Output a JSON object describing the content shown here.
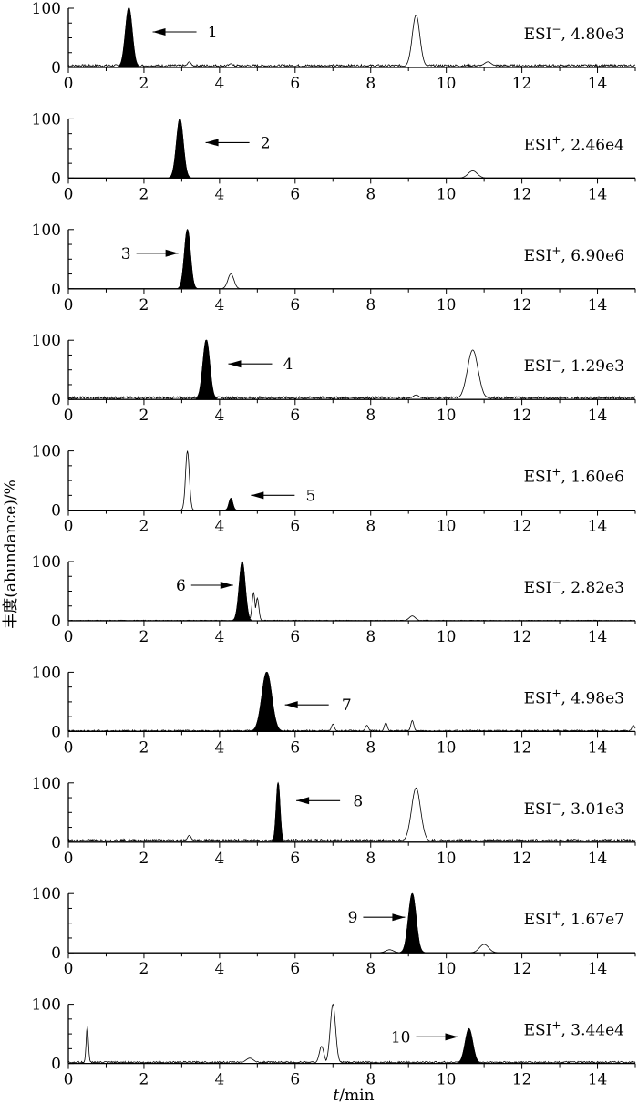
{
  "chart_data": {
    "type": "line",
    "description_free": true,
    "x_axis": {
      "label_italic": "t",
      "label_rest": "/min",
      "range": [
        0,
        15
      ],
      "ticks": [
        "0",
        "2",
        "4",
        "6",
        "8",
        "10",
        "12",
        "14"
      ]
    },
    "y_axis": {
      "label": "丰度(abundance)/%",
      "range": [
        0,
        100
      ],
      "ticks": [
        "0",
        "100"
      ]
    },
    "panels": [
      {
        "mode": "ESI",
        "sign": "−",
        "intensity": ", 4.80e3",
        "peak_number": "1",
        "arrow": "left",
        "arrow_x": 3.1,
        "label_x": 3.2,
        "arrow_y": 60,
        "baseline": 3,
        "noise": 2,
        "target_peak": {
          "rt": 1.6,
          "height": 100,
          "width": 0.09
        },
        "other_peaks": [
          {
            "rt": 9.2,
            "height": 87,
            "width": 0.1
          },
          {
            "rt": 3.2,
            "height": 8,
            "width": 0.05
          },
          {
            "rt": 11.1,
            "height": 8,
            "width": 0.1
          },
          {
            "rt": 4.3,
            "height": 5,
            "width": 0.05
          }
        ]
      },
      {
        "mode": "ESI",
        "sign": "+",
        "intensity": ", 2.46e4",
        "peak_number": "2",
        "arrow": "left",
        "arrow_x": 4.5,
        "label_x": 4.6,
        "arrow_y": 60,
        "baseline": 0.5,
        "noise": 0,
        "target_peak": {
          "rt": 2.95,
          "height": 100,
          "width": 0.09
        },
        "other_peaks": [
          {
            "rt": 10.7,
            "height": 12,
            "width": 0.12
          }
        ]
      },
      {
        "mode": "ESI",
        "sign": "+",
        "intensity": ", 6.90e6",
        "peak_number": "3",
        "arrow": "right",
        "arrow_x": 1.8,
        "label_x": 1.5,
        "arrow_y": 60,
        "baseline": 0.2,
        "noise": 0,
        "target_peak": {
          "rt": 3.15,
          "height": 100,
          "width": 0.08
        },
        "other_peaks": [
          {
            "rt": 4.3,
            "height": 25,
            "width": 0.08
          }
        ]
      },
      {
        "mode": "ESI",
        "sign": "−",
        "intensity": ", 1.29e3",
        "peak_number": "4",
        "arrow": "left",
        "arrow_x": 5.1,
        "label_x": 5.2,
        "arrow_y": 60,
        "baseline": 3,
        "noise": 2,
        "target_peak": {
          "rt": 3.65,
          "height": 100,
          "width": 0.09
        },
        "other_peaks": [
          {
            "rt": 10.7,
            "height": 82,
            "width": 0.14
          },
          {
            "rt": 9.2,
            "height": 6,
            "width": 0.08
          }
        ]
      },
      {
        "mode": "ESI",
        "sign": "+",
        "intensity": ", 1.60e6",
        "peak_number": "5",
        "arrow": "left",
        "arrow_x": 5.7,
        "label_x": 5.8,
        "arrow_y": 25,
        "baseline": 0.2,
        "noise": 0,
        "target_peak": {
          "rt": 4.3,
          "height": 20,
          "width": 0.05
        },
        "other_peaks": [
          {
            "rt": 3.15,
            "height": 100,
            "width": 0.05
          }
        ]
      },
      {
        "mode": "ESI",
        "sign": "−",
        "intensity": ", 2.82e3",
        "peak_number": "6",
        "arrow": "right",
        "arrow_x": 3.25,
        "label_x": 2.95,
        "arrow_y": 60,
        "baseline": 0.5,
        "noise": 0.6,
        "target_peak": {
          "rt": 4.6,
          "height": 100,
          "width": 0.08
        },
        "other_peaks": [
          {
            "rt": 4.9,
            "height": 47,
            "width": 0.04
          },
          {
            "rt": 5.0,
            "height": 38,
            "width": 0.04
          },
          {
            "rt": 9.1,
            "height": 8,
            "width": 0.08
          }
        ]
      },
      {
        "mode": "ESI",
        "sign": "+",
        "intensity": ", 4.98e3",
        "peak_number": "7",
        "arrow": "left",
        "arrow_x": 6.6,
        "label_x": 6.75,
        "arrow_y": 45,
        "baseline": 1,
        "noise": 1.5,
        "target_peak": {
          "rt": 5.25,
          "height": 100,
          "width": 0.13
        },
        "other_peaks": [
          {
            "rt": 9.1,
            "height": 18,
            "width": 0.04
          },
          {
            "rt": 7.0,
            "height": 12,
            "width": 0.04
          },
          {
            "rt": 8.4,
            "height": 14,
            "width": 0.04
          },
          {
            "rt": 7.9,
            "height": 10,
            "width": 0.04
          },
          {
            "rt": 14.95,
            "height": 10,
            "width": 0.04
          }
        ]
      },
      {
        "mode": "ESI",
        "sign": "−",
        "intensity": ", 3.01e3",
        "peak_number": "8",
        "arrow": "left",
        "arrow_x": 6.9,
        "label_x": 7.05,
        "arrow_y": 70,
        "baseline": 3,
        "noise": 2,
        "target_peak": {
          "rt": 5.55,
          "height": 100,
          "width": 0.05
        },
        "other_peaks": [
          {
            "rt": 9.2,
            "height": 90,
            "width": 0.12
          },
          {
            "rt": 3.2,
            "height": 10,
            "width": 0.05
          }
        ]
      },
      {
        "mode": "ESI",
        "sign": "+",
        "intensity": ", 1.67e7",
        "peak_number": "9",
        "arrow": "right",
        "arrow_x": 7.8,
        "label_x": 7.5,
        "arrow_y": 60,
        "baseline": 0.5,
        "noise": 0,
        "target_peak": {
          "rt": 9.1,
          "height": 100,
          "width": 0.1
        },
        "other_peaks": [
          {
            "rt": 11.0,
            "height": 14,
            "width": 0.12
          },
          {
            "rt": 8.5,
            "height": 5,
            "width": 0.1
          }
        ]
      },
      {
        "mode": "ESI",
        "sign": "+",
        "intensity": ", 3.44e4",
        "peak_number": "10",
        "arrow": "right",
        "arrow_x": 9.2,
        "label_x": 8.8,
        "arrow_y": 45,
        "baseline": 2,
        "noise": 1.5,
        "target_peak": {
          "rt": 10.6,
          "height": 58,
          "width": 0.1
        },
        "other_peaks": [
          {
            "rt": 7.0,
            "height": 100,
            "width": 0.07
          },
          {
            "rt": 0.5,
            "height": 62,
            "width": 0.03
          },
          {
            "rt": 6.7,
            "height": 28,
            "width": 0.06
          },
          {
            "rt": 4.8,
            "height": 8,
            "width": 0.1
          }
        ]
      }
    ]
  }
}
